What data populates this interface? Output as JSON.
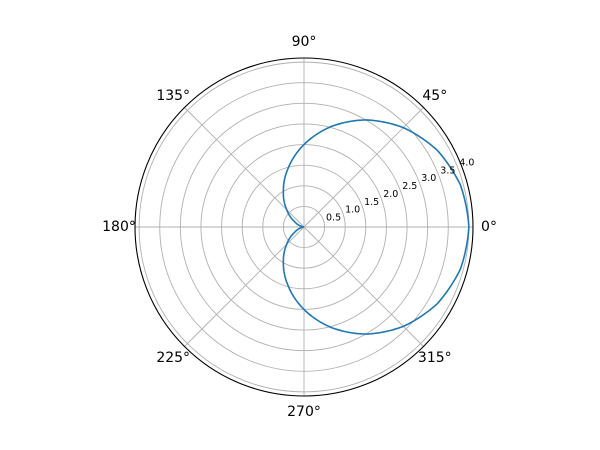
{
  "chart_data": {
    "type": "line",
    "projection": "polar",
    "title": "",
    "angle_unit": "degrees",
    "angle_ticks": [
      0,
      45,
      90,
      135,
      180,
      225,
      270,
      315
    ],
    "angle_tick_labels": [
      "0°",
      "45°",
      "90°",
      "135°",
      "180°",
      "225°",
      "270°",
      "315°"
    ],
    "radial_ticks": [
      0.5,
      1.0,
      1.5,
      2.0,
      2.5,
      3.0,
      3.5,
      4.0
    ],
    "radial_tick_labels": [
      "0.5",
      "1.0",
      "1.5",
      "2.0",
      "2.5",
      "3.0",
      "3.5",
      "4.0"
    ],
    "radial_label_angle_deg": 22.5,
    "rlim": [
      0,
      4.1
    ],
    "grid": true,
    "series": [
      {
        "color": "#1f77b4",
        "theta_deg": [
          0,
          15,
          30,
          45,
          60,
          75,
          90,
          105,
          120,
          135,
          150,
          165,
          180,
          195,
          210,
          225,
          240,
          255,
          270,
          285,
          300,
          315,
          330,
          345,
          360
        ],
        "r": [
          4.0,
          3.93,
          3.73,
          3.41,
          3.0,
          2.52,
          2.0,
          1.48,
          1.0,
          0.59,
          0.27,
          0.07,
          0.0,
          0.07,
          0.27,
          0.59,
          1.0,
          1.48,
          2.0,
          2.52,
          3.0,
          3.41,
          3.73,
          3.93,
          4.0
        ]
      }
    ]
  }
}
